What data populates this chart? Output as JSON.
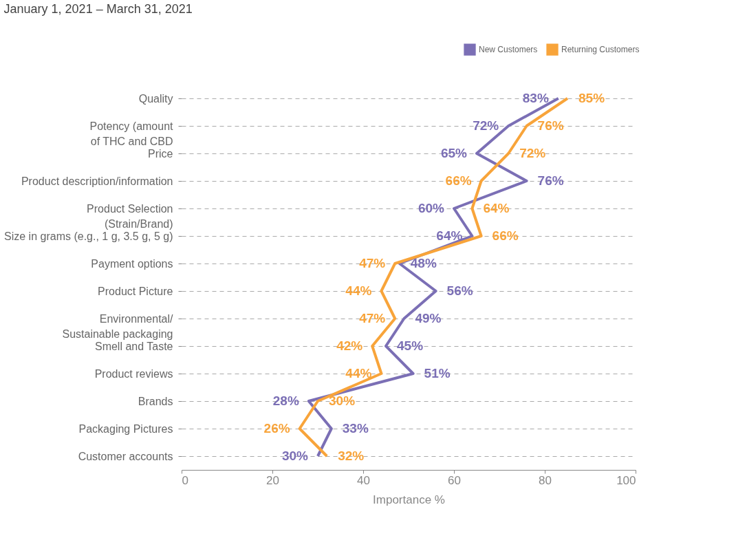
{
  "chart_data": {
    "type": "line",
    "orientation": "horizontal",
    "subtitle": "January 1, 2021 – March 31, 2021",
    "categories": [
      "Quality",
      "Potency (amount\nof THC and CBD",
      "Price",
      "Product description/information",
      "Product Selection\n(Strain/Brand)",
      "Size in grams (e.g., 1 g, 3.5 g, 5 g)",
      "Payment options",
      "Product Picture",
      "Environmental/\nSustainable packaging",
      "Smell and Taste",
      "Product reviews",
      "Brands",
      "Packaging Pictures",
      "Customer accounts"
    ],
    "series": [
      {
        "name": "New Customers",
        "color": "#7b6fb5",
        "values": [
          83,
          72,
          65,
          76,
          60,
          64,
          48,
          56,
          49,
          45,
          51,
          28,
          33,
          30
        ],
        "value_labels": [
          "83%",
          "72%",
          "65%",
          "76%",
          "60%",
          "64%",
          "48%",
          "56%",
          "49%",
          "45%",
          "51%",
          "28%",
          "33%",
          "30%"
        ]
      },
      {
        "name": "Returning Customers",
        "color": "#f8a43a",
        "values": [
          85,
          76,
          72,
          66,
          64,
          66,
          47,
          44,
          47,
          42,
          44,
          30,
          26,
          32
        ],
        "value_labels": [
          "85%",
          "76%",
          "72%",
          "66%",
          "64%",
          "66%",
          "47%",
          "44%",
          "47%",
          "42%",
          "44%",
          "30%",
          "26%",
          "32%"
        ]
      }
    ],
    "xlabel": "Importance %",
    "xlim": [
      0,
      100
    ],
    "xticks": [
      0,
      20,
      40,
      60,
      80,
      100
    ],
    "grid": "y",
    "legend": "top right",
    "marker": "none",
    "line_style": "solid"
  }
}
